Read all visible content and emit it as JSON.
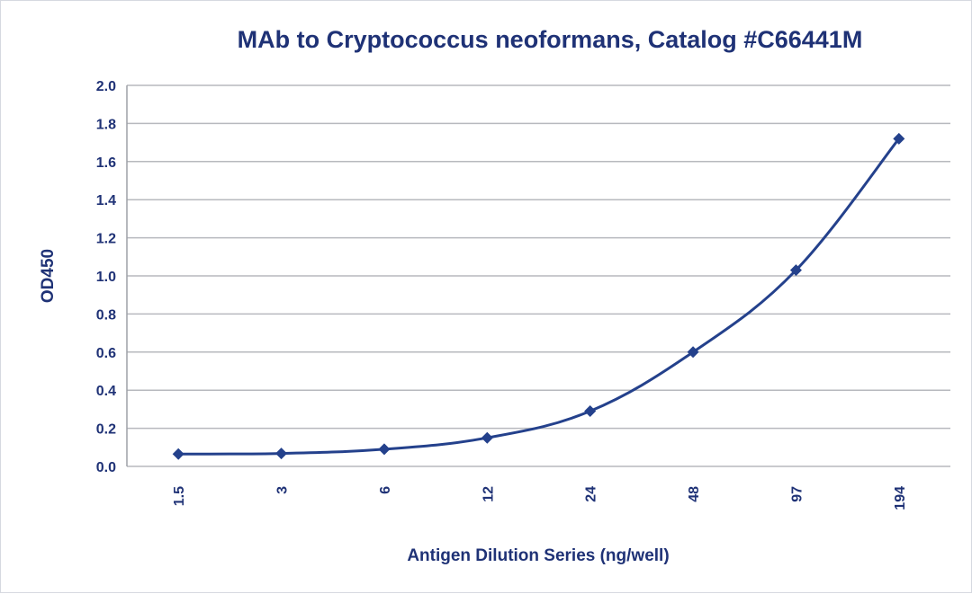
{
  "chart_data": {
    "type": "line",
    "title": "MAb to Cryptococcus neoformans, Catalog #C66441M",
    "xlabel": "Antigen Dilution Series (ng/well)",
    "ylabel": "OD450",
    "categories": [
      "1.5",
      "3",
      "6",
      "12",
      "24",
      "48",
      "97",
      "194"
    ],
    "series": [
      {
        "values": [
          0.065,
          0.068,
          0.09,
          0.15,
          0.29,
          0.6,
          1.03,
          1.72
        ]
      }
    ],
    "ylim": [
      0,
      2.0
    ],
    "yticks": [
      "0.0",
      "0.2",
      "0.4",
      "0.6",
      "0.8",
      "1.0",
      "1.2",
      "1.4",
      "1.6",
      "1.8",
      "2.0"
    ],
    "grid": true,
    "legend": "none",
    "colors": {
      "series": "#24418c",
      "text": "#1f3276",
      "grid": "#b7b9be"
    }
  }
}
